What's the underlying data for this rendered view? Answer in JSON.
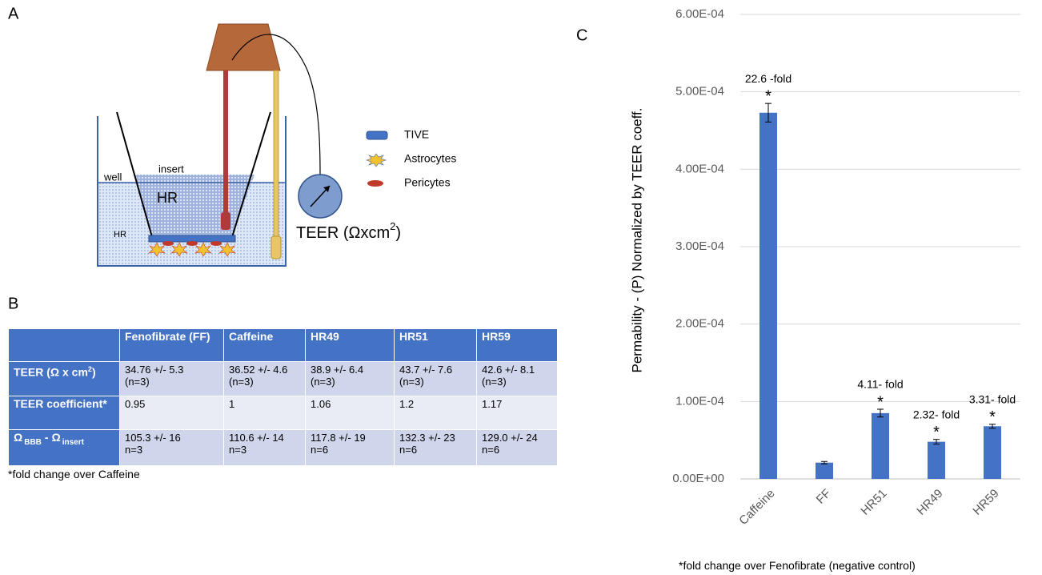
{
  "panel_a": {
    "label": "A",
    "well": "well",
    "insert": "insert",
    "hr_insert": "HR",
    "hr_well": "HR",
    "legend": [
      "TIVE",
      "Astrocytes",
      "Pericytes"
    ],
    "teer": {
      "text": "TEER (Ωxcm",
      "sup": "2",
      "close": ")"
    }
  },
  "panel_b": {
    "label": "B",
    "table": {
      "columns": [
        "Fenofibrate (FF)",
        "Caffeine",
        "HR49",
        "HR51",
        "HR59"
      ],
      "rows": [
        {
          "label": [
            {
              "text": "TEER (Ω x cm"
            },
            {
              "text": "2",
              "sup": true
            },
            {
              "text": ")"
            }
          ],
          "cells": [
            "34.76 +/- 5.3\n(n=3)",
            "36.52 +/- 4.6\n(n=3)",
            "38.9 +/- 6.4\n(n=3)",
            "43.7 +/- 7.6\n(n=3)",
            "42.6 +/- 8.1\n(n=3)"
          ]
        },
        {
          "label": [
            {
              "text": "TEER coefficient*"
            }
          ],
          "cells": [
            "0.95",
            "1",
            "1.06",
            "1.2",
            "1.17"
          ]
        },
        {
          "label": [
            {
              "text": "Ω"
            },
            {
              "text": "BBB",
              "sub": true
            },
            {
              "text": "- Ω"
            },
            {
              "text": "insert",
              "sub": true
            }
          ],
          "cells": [
            "105.3 +/- 16\nn=3",
            "110.6 +/- 14\nn=3",
            "117.8 +/- 19\nn=6",
            "132.3 +/- 23\nn=6",
            "129.0 +/- 24\nn=6"
          ]
        }
      ]
    },
    "footnote": "*fold change over Caffeine"
  },
  "chart_data": {
    "type": "bar",
    "panel_label": "C",
    "y_label": "Permability - (P) Normalized by TEER coeff.",
    "categories": [
      "Caffeine",
      "FF",
      "HR51",
      "HR49",
      "HR59"
    ],
    "values": [
      0.000473,
      2.1e-05,
      8.5e-05,
      4.8e-05,
      6.8e-05
    ],
    "errors": [
      1.2e-05,
      1.5e-06,
      5e-06,
      3e-06,
      2.5e-06
    ],
    "significance": [
      "*",
      null,
      "*",
      "*",
      "*"
    ],
    "fold_labels": [
      "22.6 -fold",
      null,
      "4.11- fold",
      "2.32- fold",
      "3.31- fold"
    ],
    "color": "#4472c4",
    "ylim": [
      0,
      0.0006
    ],
    "yticks": [
      {
        "value": 0,
        "label": "0.00E+00"
      },
      {
        "value": 0.0001,
        "label": "1.00E-04"
      },
      {
        "value": 0.0002,
        "label": "2.00E-04"
      },
      {
        "value": 0.0003,
        "label": "3.00E-04"
      },
      {
        "value": 0.0004,
        "label": "4.00E-04"
      },
      {
        "value": 0.0005,
        "label": "5.00E-04"
      },
      {
        "value": 0.0006,
        "label": "6.00E-04"
      }
    ],
    "grid": true,
    "footnote": "*fold change over Fenofibrate (negative control)"
  }
}
